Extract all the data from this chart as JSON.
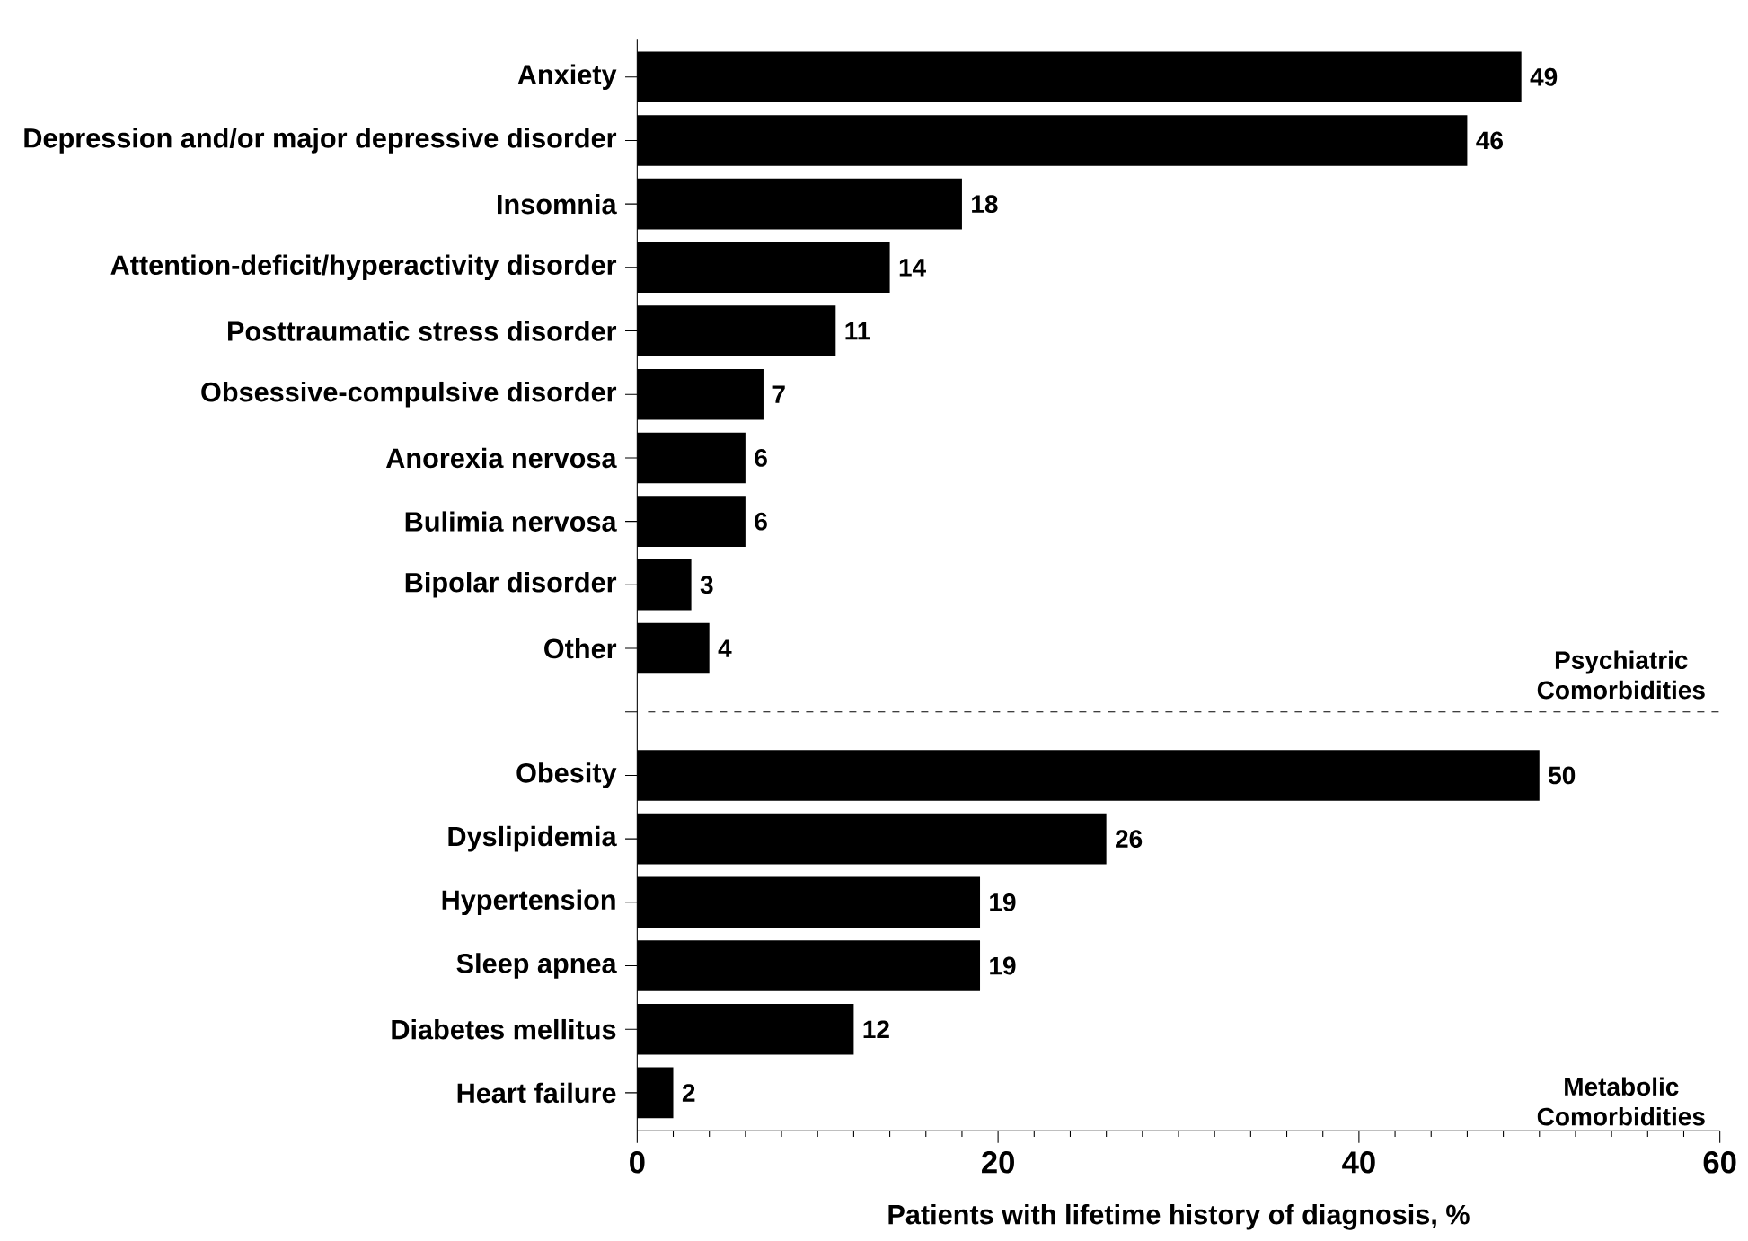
{
  "chart_data": {
    "type": "bar",
    "orientation": "horizontal",
    "xlabel": "Patients with lifetime history of diagnosis, %",
    "categories": [
      "Anxiety",
      "Depression and/or major depressive disorder",
      "Insomnia",
      "Attention-deficit/hyperactivity disorder",
      "Posttraumatic stress disorder",
      "Obsessive-compulsive disorder",
      "Anorexia nervosa",
      "Bulimia nervosa",
      "Bipolar disorder",
      "Other",
      null,
      "Obesity",
      "Dyslipidemia",
      "Hypertension",
      "Sleep apnea",
      "Diabetes mellitus",
      "Heart failure"
    ],
    "values": [
      49,
      46,
      18,
      14,
      11,
      7,
      6,
      6,
      3,
      4,
      null,
      50,
      26,
      19,
      19,
      12,
      2
    ],
    "color": "#000000",
    "data_labels": true,
    "xlim": [
      0,
      60
    ],
    "xticks": [
      0,
      20,
      40,
      60
    ],
    "annotations": [
      "Psychiatric Comorbidities",
      "Metabolic Comorbidities"
    ]
  }
}
